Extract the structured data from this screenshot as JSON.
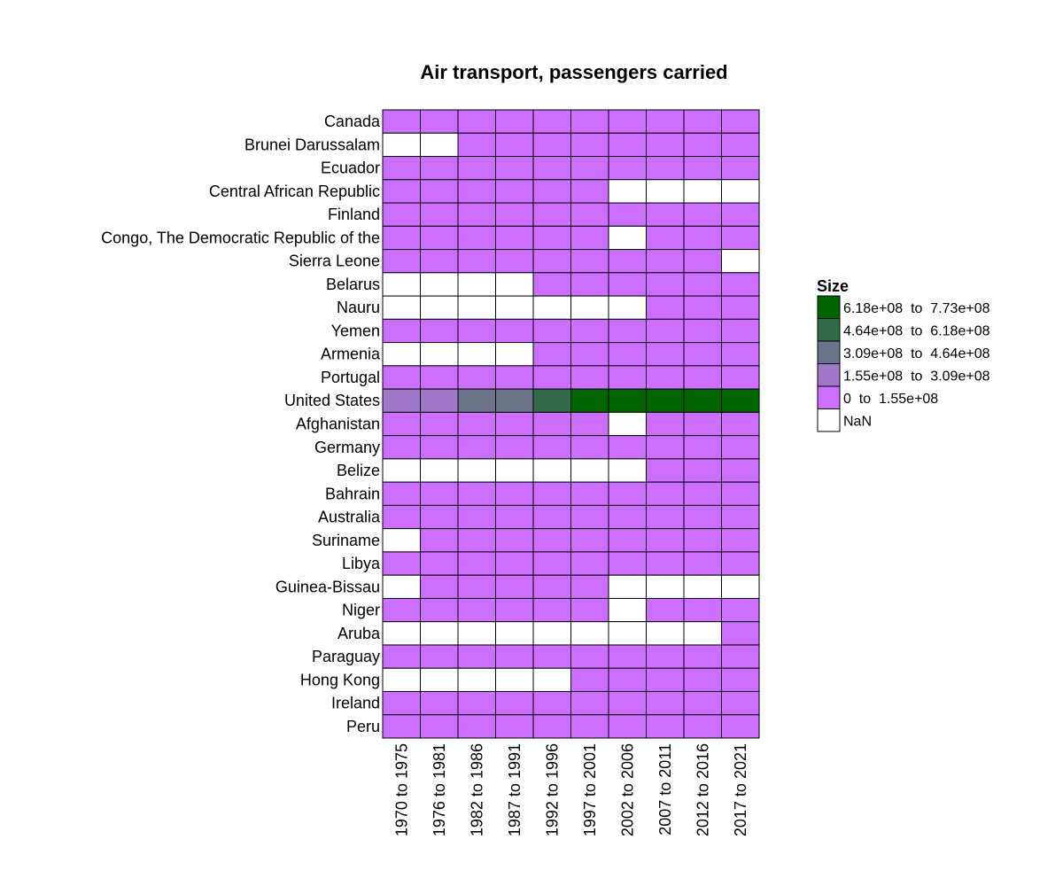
{
  "chart_data": {
    "type": "heatmap",
    "title": "Air transport, passengers carried",
    "xlabel": "",
    "ylabel": "",
    "columns": [
      "1970 to 1975",
      "1976 to 1981",
      "1982 to 1986",
      "1987 to 1991",
      "1992 to 1996",
      "1997 to 2001",
      "2002 to 2006",
      "2007 to 2011",
      "2012 to 2016",
      "2017 to 2021"
    ],
    "rows": [
      "Canada",
      "Brunei Darussalam",
      "Ecuador",
      "Central African Republic",
      "Finland",
      "Congo, The Democratic Republic of the",
      "Sierra Leone",
      "Belarus",
      "Nauru",
      "Yemen",
      "Armenia",
      "Portugal",
      "United States",
      "Afghanistan",
      "Germany",
      "Belize",
      "Bahrain",
      "Australia",
      "Suriname",
      "Libya",
      "Guinea-Bissau",
      "Niger",
      "Aruba",
      "Paraguay",
      "Hong Kong",
      "Ireland",
      "Peru"
    ],
    "bin_index_note_values": "cell values are legend bin indices: 0 = '0 to 1.55e+08', 1 = '1.55e+08 to 3.09e+08', 2 = '3.09e+08 to 4.64e+08', 3 = '4.64e+08 to 6.18e+08', 4 = '6.18e+08 to 7.73e+08', null = NaN",
    "values": [
      [
        0,
        0,
        0,
        0,
        0,
        0,
        0,
        0,
        0,
        0
      ],
      [
        null,
        null,
        0,
        0,
        0,
        0,
        0,
        0,
        0,
        0
      ],
      [
        0,
        0,
        0,
        0,
        0,
        0,
        0,
        0,
        0,
        0
      ],
      [
        0,
        0,
        0,
        0,
        0,
        0,
        null,
        null,
        null,
        null
      ],
      [
        0,
        0,
        0,
        0,
        0,
        0,
        0,
        0,
        0,
        0
      ],
      [
        0,
        0,
        0,
        0,
        0,
        0,
        null,
        0,
        0,
        0
      ],
      [
        0,
        0,
        0,
        0,
        0,
        0,
        0,
        0,
        0,
        null
      ],
      [
        null,
        null,
        null,
        null,
        0,
        0,
        0,
        0,
        0,
        0
      ],
      [
        null,
        null,
        null,
        null,
        null,
        null,
        null,
        0,
        0,
        0
      ],
      [
        0,
        0,
        0,
        0,
        0,
        0,
        0,
        0,
        0,
        0
      ],
      [
        null,
        null,
        null,
        null,
        0,
        0,
        0,
        0,
        0,
        0
      ],
      [
        0,
        0,
        0,
        0,
        0,
        0,
        0,
        0,
        0,
        0
      ],
      [
        1,
        1,
        2,
        2,
        3,
        4,
        4,
        4,
        4,
        4
      ],
      [
        0,
        0,
        0,
        0,
        0,
        0,
        null,
        0,
        0,
        0
      ],
      [
        0,
        0,
        0,
        0,
        0,
        0,
        0,
        0,
        0,
        0
      ],
      [
        null,
        null,
        null,
        null,
        null,
        null,
        null,
        0,
        0,
        0
      ],
      [
        0,
        0,
        0,
        0,
        0,
        0,
        0,
        0,
        0,
        0
      ],
      [
        0,
        0,
        0,
        0,
        0,
        0,
        0,
        0,
        0,
        0
      ],
      [
        null,
        0,
        0,
        0,
        0,
        0,
        0,
        0,
        0,
        0
      ],
      [
        0,
        0,
        0,
        0,
        0,
        0,
        0,
        0,
        0,
        0
      ],
      [
        null,
        0,
        0,
        0,
        0,
        0,
        null,
        null,
        null,
        null
      ],
      [
        0,
        0,
        0,
        0,
        0,
        0,
        null,
        0,
        0,
        0
      ],
      [
        null,
        null,
        null,
        null,
        null,
        null,
        null,
        null,
        null,
        0
      ],
      [
        0,
        0,
        0,
        0,
        0,
        0,
        0,
        0,
        0,
        0
      ],
      [
        null,
        null,
        null,
        null,
        null,
        0,
        0,
        0,
        0,
        0
      ],
      [
        0,
        0,
        0,
        0,
        0,
        0,
        0,
        0,
        0,
        0
      ],
      [
        0,
        0,
        0,
        0,
        0,
        0,
        0,
        0,
        0,
        0
      ]
    ],
    "legend": {
      "title": "Size",
      "placement": "right",
      "items": [
        {
          "label": "6.18e+08  to  7.73e+08",
          "color": "#006400"
        },
        {
          "label": "4.64e+08  to  6.18e+08",
          "color": "#326a4a"
        },
        {
          "label": "3.09e+08  to  4.64e+08",
          "color": "#6b7488"
        },
        {
          "label": "1.55e+08  to  3.09e+08",
          "color": "#a078c8"
        },
        {
          "label": "0  to  1.55e+08",
          "color": "#cc6eff"
        },
        {
          "label": "NaN",
          "color": "#ffffff"
        }
      ]
    },
    "grid": true
  }
}
